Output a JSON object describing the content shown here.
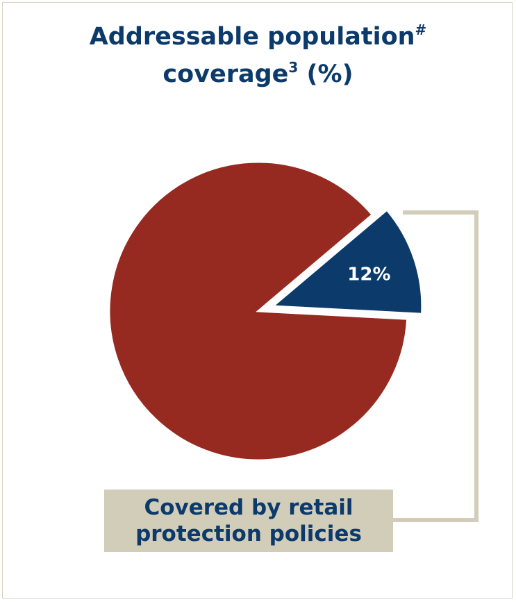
{
  "title": {
    "line1": "Addressable population",
    "line1_sup": "#",
    "line2": "coverage",
    "line2_sup": "3",
    "line2_suffix": " (%)"
  },
  "colors": {
    "covered": "#0b3a6b",
    "remainder": "#962a20",
    "bracket": "#d2cdb8",
    "title": "#0b3a6b"
  },
  "chart_data": {
    "type": "pie",
    "title": "Addressable population# coverage3 (%)",
    "slices": [
      {
        "label": "12%",
        "value": 12,
        "exploded": true
      },
      {
        "label": "",
        "value": 88,
        "exploded": false
      }
    ],
    "annotation": "Covered by retail protection policies"
  },
  "annotation": {
    "line1": "Covered by retail",
    "line2": "protection policies"
  }
}
